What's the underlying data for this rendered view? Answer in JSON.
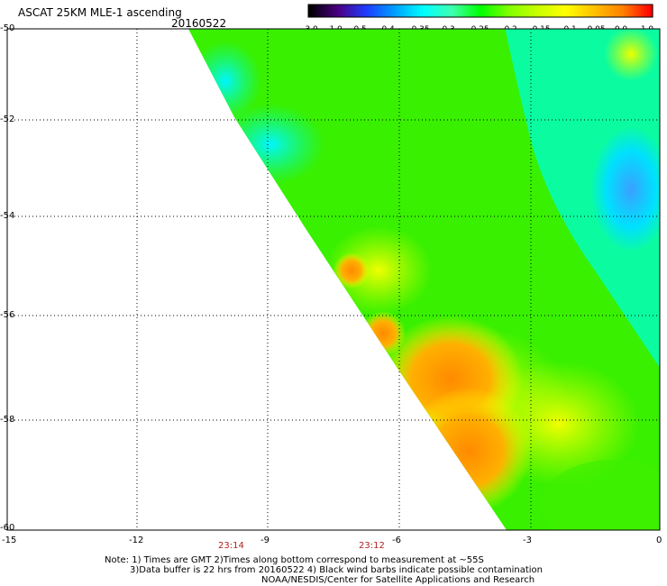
{
  "header": {
    "title": "ASCAT 25KM MLE-1 ascending",
    "date": "20160522"
  },
  "colorbar": {
    "tick_labels": [
      "-3.0",
      "-1.0",
      "-0.5",
      "-0.4",
      "-0.35",
      "-0.3",
      "-0.25",
      "-0.2",
      "-0.15",
      "-0.1",
      "-0.05",
      "0.0",
      "1.0"
    ],
    "colors": [
      "#000000",
      "#4b0082",
      "#1e3cff",
      "#00a0ff",
      "#00ffff",
      "#40ffb0",
      "#00ff00",
      "#80ff00",
      "#c8ff00",
      "#ffff00",
      "#ffc000",
      "#ff8000",
      "#ff0000"
    ]
  },
  "axes": {
    "y_labels": [
      "-50",
      "-52",
      "-54",
      "-56",
      "-58",
      "-60"
    ],
    "x_labels": [
      "-15",
      "-12",
      "-9",
      "-6",
      "-3",
      "0"
    ],
    "lat_range": [
      -60,
      -50
    ],
    "lon_range": [
      -15,
      0
    ],
    "grid": "dotted"
  },
  "times": [
    "23:14",
    "23:12"
  ],
  "notes": {
    "line1": "Note: 1) Times are GMT 2)Times along bottom correspond to measurement at ~55S",
    "line2": "3)Data buffer is 22 hrs from 20160522 4) Black wind barbs indicate possible contamination",
    "line3": "NOAA/NESDIS/Center for Satellite Applications and Research"
  }
}
